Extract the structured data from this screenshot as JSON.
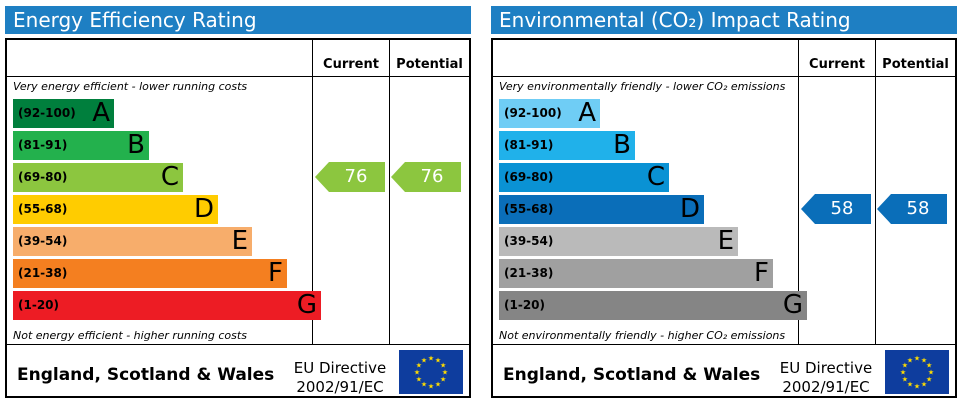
{
  "chart_data": [
    {
      "type": "bar",
      "title": "Energy Efficiency Rating",
      "columns": [
        "Current",
        "Potential"
      ],
      "top_caption": "Very energy efficient - lower running costs",
      "bottom_caption": "Not energy efficient - higher running costs",
      "bands": [
        {
          "range": "(92-100)",
          "letter": "A",
          "color": "#007f3d",
          "range_color": "#000000"
        },
        {
          "range": "(81-91)",
          "letter": "B",
          "color": "#23b14d",
          "range_color": "#000000"
        },
        {
          "range": "(69-80)",
          "letter": "C",
          "color": "#8cc63f",
          "range_color": "#000000"
        },
        {
          "range": "(55-68)",
          "letter": "D",
          "color": "#ffcc00",
          "range_color": "#000000"
        },
        {
          "range": "(39-54)",
          "letter": "E",
          "color": "#f7ad6b",
          "range_color": "#000000"
        },
        {
          "range": "(21-38)",
          "letter": "F",
          "color": "#f47f20",
          "range_color": "#000000"
        },
        {
          "range": "(1-20)",
          "letter": "G",
          "color": "#ed1c24",
          "range_color": "#000000"
        }
      ],
      "current": {
        "value": 76,
        "band": "C",
        "color": "#8cc63f"
      },
      "potential": {
        "value": 76,
        "band": "C",
        "color": "#8cc63f"
      },
      "footer": {
        "region": "England, Scotland & Wales",
        "directive_line1": "EU Directive",
        "directive_line2": "2002/91/EC"
      }
    },
    {
      "type": "bar",
      "title": "Environmental (CO₂) Impact Rating",
      "columns": [
        "Current",
        "Potential"
      ],
      "top_caption": "Very environmentally friendly - lower CO₂ emissions",
      "bottom_caption": "Not environmentally friendly - higher CO₂ emissions",
      "bands": [
        {
          "range": "(92-100)",
          "letter": "A",
          "color": "#6fcdf5",
          "range_color": "#000000"
        },
        {
          "range": "(81-91)",
          "letter": "B",
          "color": "#20b1ea",
          "range_color": "#000000"
        },
        {
          "range": "(69-80)",
          "letter": "C",
          "color": "#0a92d4",
          "range_color": "#000000"
        },
        {
          "range": "(55-68)",
          "letter": "D",
          "color": "#0a6eb9",
          "range_color": "#000000"
        },
        {
          "range": "(39-54)",
          "letter": "E",
          "color": "#bababa",
          "range_color": "#000000"
        },
        {
          "range": "(21-38)",
          "letter": "F",
          "color": "#a0a0a0",
          "range_color": "#000000"
        },
        {
          "range": "(1-20)",
          "letter": "G",
          "color": "#858585",
          "range_color": "#000000"
        }
      ],
      "current": {
        "value": 58,
        "band": "D",
        "color": "#0a6eb9"
      },
      "potential": {
        "value": 58,
        "band": "D",
        "color": "#0a6eb9"
      },
      "footer": {
        "region": "England, Scotland & Wales",
        "directive_line1": "EU Directive",
        "directive_line2": "2002/91/EC"
      }
    }
  ],
  "colors": {
    "title_bar": "#1e7fc3",
    "eu_flag": "#0e3d9e",
    "eu_stars": "#ffdd00"
  }
}
